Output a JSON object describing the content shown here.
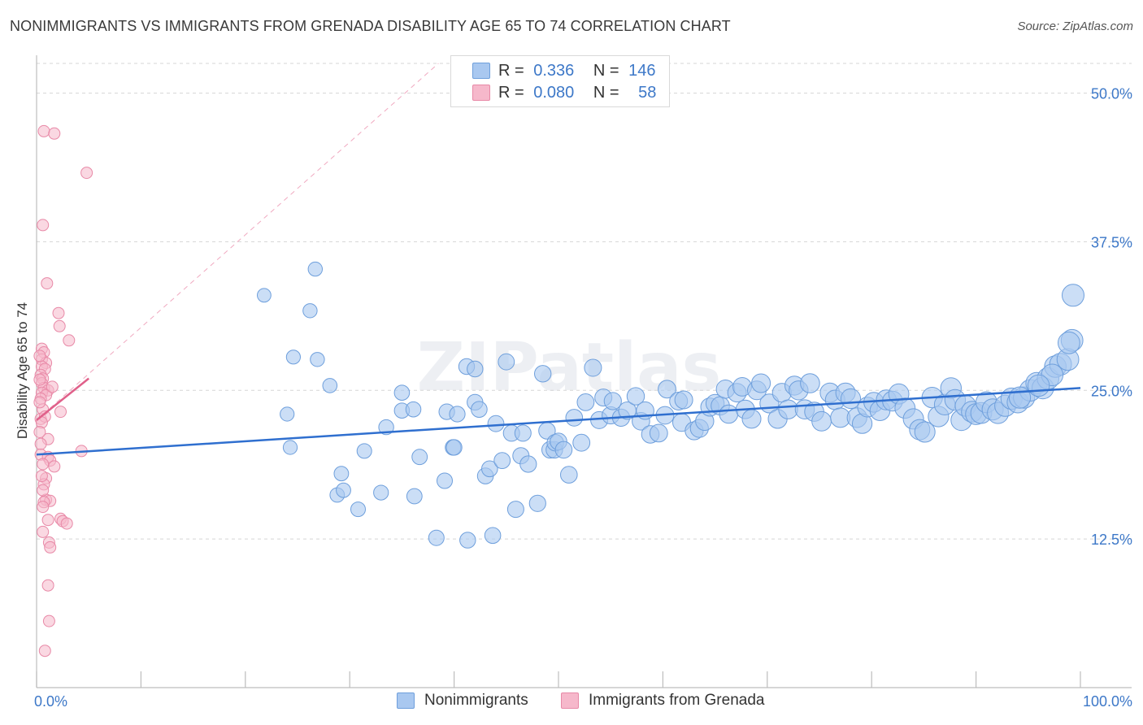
{
  "header": {
    "title": "NONIMMIGRANTS VS IMMIGRANTS FROM GRENADA DISABILITY AGE 65 TO 74 CORRELATION CHART",
    "source": "Source: ZipAtlas.com"
  },
  "watermark": "ZIPatlas",
  "colors": {
    "blue_fill": "#a9c8f0",
    "blue_stroke": "#6e9fdc",
    "blue_line": "#2f6fcf",
    "pink_fill": "#f6b8cb",
    "pink_stroke": "#e889a7",
    "pink_line": "#e0608a",
    "tick_label": "#3d78c8"
  },
  "legend_top": {
    "rows": [
      {
        "r_label": "R =",
        "r_value": "0.336",
        "n_label": "N =",
        "n_value": "146"
      },
      {
        "r_label": "R =",
        "r_value": "0.080",
        "n_label": "N =",
        "n_value": "58"
      }
    ]
  },
  "legend_bottom": {
    "items": [
      "Nonimmigrants",
      "Immigrants from Grenada"
    ]
  },
  "chart_data": {
    "type": "scatter",
    "title": "NONIMMIGRANTS VS IMMIGRANTS FROM GRENADA DISABILITY AGE 65 TO 74 CORRELATION CHART",
    "xlabel": "",
    "ylabel": "Disability Age 65 to 74",
    "xlim": [
      0,
      100
    ],
    "ylim": [
      0,
      52.5
    ],
    "x_tick_labels": [
      "0.0%",
      "100.0%"
    ],
    "y_ticks": [
      12.5,
      25.0,
      37.5,
      50.0
    ],
    "y_tick_labels": [
      "12.5%",
      "25.0%",
      "37.5%",
      "50.0%"
    ],
    "grid": true,
    "legend": "top-center",
    "series": [
      {
        "name": "Nonimmigrants",
        "color": "#a9c8f0",
        "trend": {
          "x": [
            0,
            100
          ],
          "y": [
            19.6,
            25.2
          ]
        },
        "points": [
          [
            21.8,
            33.0
          ],
          [
            26.7,
            35.2
          ],
          [
            26.2,
            31.7
          ],
          [
            24.6,
            27.8
          ],
          [
            24.0,
            23.0
          ],
          [
            24.3,
            20.2
          ],
          [
            28.1,
            25.4
          ],
          [
            26.9,
            27.6
          ],
          [
            29.2,
            18.0
          ],
          [
            28.8,
            16.2
          ],
          [
            29.4,
            16.6
          ],
          [
            30.8,
            15.0
          ],
          [
            31.4,
            19.9
          ],
          [
            33.0,
            16.4
          ],
          [
            33.5,
            21.9
          ],
          [
            35.0,
            23.3
          ],
          [
            35.0,
            24.8
          ],
          [
            36.1,
            23.4
          ],
          [
            36.2,
            16.1
          ],
          [
            36.7,
            19.4
          ],
          [
            38.3,
            12.6
          ],
          [
            39.1,
            17.4
          ],
          [
            39.3,
            23.2
          ],
          [
            40.3,
            23.0
          ],
          [
            39.9,
            20.2
          ],
          [
            40.0,
            20.2
          ],
          [
            41.3,
            12.4
          ],
          [
            41.2,
            27.0
          ],
          [
            42.0,
            26.8
          ],
          [
            42.0,
            24.0
          ],
          [
            42.4,
            23.4
          ],
          [
            43.0,
            17.8
          ],
          [
            43.4,
            18.4
          ],
          [
            43.7,
            12.8
          ],
          [
            44.0,
            22.2
          ],
          [
            44.6,
            19.1
          ],
          [
            45.0,
            27.4
          ],
          [
            45.5,
            21.4
          ],
          [
            45.9,
            15.0
          ],
          [
            46.4,
            19.5
          ],
          [
            46.6,
            21.4
          ],
          [
            47.1,
            18.8
          ],
          [
            48.0,
            15.5
          ],
          [
            48.5,
            26.4
          ],
          [
            48.9,
            21.6
          ],
          [
            49.2,
            20.0
          ],
          [
            49.6,
            20.0
          ],
          [
            49.7,
            20.6
          ],
          [
            50.0,
            20.7
          ],
          [
            50.5,
            20.0
          ],
          [
            51.0,
            17.9
          ],
          [
            51.5,
            22.7
          ],
          [
            52.2,
            20.6
          ],
          [
            52.6,
            24.0
          ],
          [
            53.3,
            26.9
          ],
          [
            53.9,
            22.5
          ],
          [
            54.3,
            24.4
          ],
          [
            55.0,
            22.9
          ],
          [
            55.2,
            24.1
          ],
          [
            56.0,
            22.7
          ],
          [
            56.6,
            23.3
          ],
          [
            57.4,
            24.5
          ],
          [
            57.9,
            22.4
          ],
          [
            58.3,
            23.3
          ],
          [
            58.8,
            21.3
          ],
          [
            59.6,
            21.4
          ],
          [
            60.2,
            22.9
          ],
          [
            60.4,
            25.1
          ],
          [
            61.5,
            24.1
          ],
          [
            61.8,
            22.3
          ],
          [
            62.0,
            24.2
          ],
          [
            63.0,
            21.6
          ],
          [
            63.5,
            21.8
          ],
          [
            64.0,
            22.4
          ],
          [
            64.5,
            23.6
          ],
          [
            65.0,
            23.9
          ],
          [
            65.5,
            23.7
          ],
          [
            66.0,
            25.1
          ],
          [
            66.3,
            23.0
          ],
          [
            67.1,
            24.8
          ],
          [
            67.6,
            25.3
          ],
          [
            67.9,
            23.4
          ],
          [
            68.5,
            22.6
          ],
          [
            69.0,
            25.0
          ],
          [
            69.4,
            25.6
          ],
          [
            70.2,
            23.9
          ],
          [
            71.0,
            22.6
          ],
          [
            71.4,
            24.8
          ],
          [
            72.0,
            23.4
          ],
          [
            72.6,
            25.4
          ],
          [
            73.0,
            25.0
          ],
          [
            73.6,
            23.4
          ],
          [
            74.1,
            25.6
          ],
          [
            74.5,
            23.2
          ],
          [
            75.2,
            22.4
          ],
          [
            76.0,
            24.8
          ],
          [
            76.5,
            24.2
          ],
          [
            77.0,
            22.7
          ],
          [
            77.5,
            24.8
          ],
          [
            78.0,
            24.3
          ],
          [
            78.6,
            22.7
          ],
          [
            79.1,
            22.2
          ],
          [
            79.6,
            23.6
          ],
          [
            80.2,
            24.0
          ],
          [
            80.8,
            23.3
          ],
          [
            81.4,
            24.2
          ],
          [
            82.0,
            24.1
          ],
          [
            82.6,
            24.7
          ],
          [
            83.2,
            23.5
          ],
          [
            84.0,
            22.6
          ],
          [
            84.6,
            21.7
          ],
          [
            85.1,
            21.5
          ],
          [
            85.8,
            24.4
          ],
          [
            86.4,
            22.8
          ],
          [
            87.0,
            23.8
          ],
          [
            87.6,
            25.2
          ],
          [
            88.0,
            24.2
          ],
          [
            88.6,
            22.5
          ],
          [
            89.0,
            23.7
          ],
          [
            89.6,
            23.2
          ],
          [
            90.0,
            23.0
          ],
          [
            90.5,
            23.1
          ],
          [
            91.0,
            24.0
          ],
          [
            91.6,
            23.4
          ],
          [
            92.1,
            23.1
          ],
          [
            92.8,
            23.7
          ],
          [
            93.4,
            24.3
          ],
          [
            94.0,
            24.0
          ],
          [
            94.6,
            24.4
          ],
          [
            95.2,
            25.0
          ],
          [
            95.8,
            25.6
          ],
          [
            96.4,
            25.2
          ],
          [
            96.9,
            26.0
          ],
          [
            97.6,
            27.0
          ],
          [
            98.1,
            27.2
          ],
          [
            98.8,
            27.6
          ],
          [
            99.3,
            33.0
          ],
          [
            99.2,
            29.2
          ],
          [
            98.9,
            29.0
          ],
          [
            97.3,
            26.3
          ],
          [
            96.0,
            25.4
          ],
          [
            94.2,
            24.4
          ]
        ]
      },
      {
        "name": "Immigrants from Grenada",
        "color": "#f6b8cb",
        "trend": {
          "x": [
            0,
            5
          ],
          "y": [
            22.5,
            26.0
          ]
        },
        "points": [
          [
            0.7,
            46.8
          ],
          [
            1.7,
            46.6
          ],
          [
            4.8,
            43.3
          ],
          [
            0.6,
            38.9
          ],
          [
            1.0,
            34.0
          ],
          [
            2.1,
            31.5
          ],
          [
            2.2,
            30.4
          ],
          [
            3.1,
            29.2
          ],
          [
            0.5,
            28.5
          ],
          [
            0.7,
            28.2
          ],
          [
            0.5,
            27.6
          ],
          [
            0.9,
            27.3
          ],
          [
            0.5,
            27.0
          ],
          [
            0.8,
            26.8
          ],
          [
            0.4,
            26.3
          ],
          [
            0.6,
            26.0
          ],
          [
            0.5,
            25.6
          ],
          [
            0.7,
            25.2
          ],
          [
            1.1,
            25.0
          ],
          [
            0.5,
            24.8
          ],
          [
            0.9,
            24.6
          ],
          [
            1.5,
            25.3
          ],
          [
            0.4,
            24.3
          ],
          [
            0.6,
            23.4
          ],
          [
            0.4,
            22.6
          ],
          [
            0.8,
            22.8
          ],
          [
            2.3,
            23.2
          ],
          [
            0.5,
            22.3
          ],
          [
            1.1,
            20.9
          ],
          [
            0.4,
            19.6
          ],
          [
            1.1,
            19.4
          ],
          [
            1.3,
            19.1
          ],
          [
            1.7,
            18.6
          ],
          [
            4.3,
            19.9
          ],
          [
            0.6,
            18.8
          ],
          [
            0.9,
            17.6
          ],
          [
            0.7,
            17.1
          ],
          [
            0.9,
            15.8
          ],
          [
            1.3,
            15.7
          ],
          [
            0.7,
            15.6
          ],
          [
            0.6,
            15.2
          ],
          [
            2.3,
            14.2
          ],
          [
            2.5,
            14.0
          ],
          [
            2.9,
            13.8
          ],
          [
            1.1,
            14.1
          ],
          [
            0.6,
            13.1
          ],
          [
            1.2,
            12.2
          ],
          [
            1.3,
            11.8
          ],
          [
            1.1,
            8.6
          ],
          [
            1.2,
            5.6
          ],
          [
            0.8,
            3.1
          ],
          [
            0.3,
            27.9
          ],
          [
            0.3,
            25.9
          ],
          [
            0.3,
            24.0
          ],
          [
            0.3,
            21.5
          ],
          [
            0.4,
            20.5
          ],
          [
            0.5,
            17.8
          ],
          [
            0.6,
            16.6
          ]
        ]
      }
    ]
  }
}
